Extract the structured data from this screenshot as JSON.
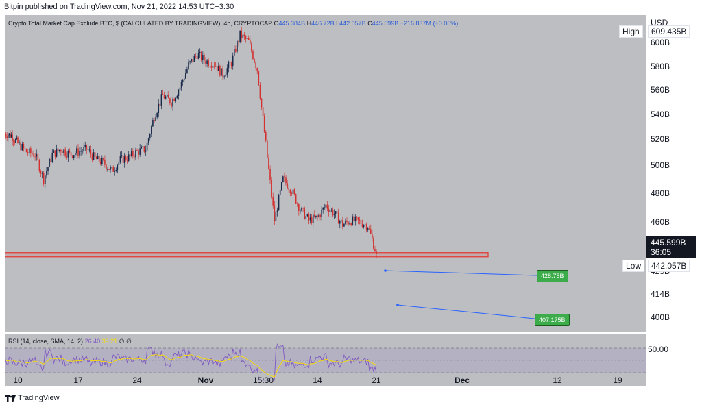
{
  "header": {
    "publish_line": "Bitpin published on TradingView.com, Nov 21, 2022 14:53 UTC+3:30"
  },
  "legend": {
    "symbol": "Crypto Total Market Cap Exclude BTC, $ (CALCULATED BY TRADINGVIEW), 4h, CRYPTOCAP",
    "open_label": "O",
    "open": "445.384B",
    "high_label": "H",
    "high": "446.72B",
    "low_label": "L",
    "low": "442.057B",
    "close_label": "C",
    "close": "445.599B",
    "change": "+216.837M (+0.05%)"
  },
  "rsi": {
    "label": "RSI (14, close, SMA, 14, 2)",
    "rsi_value": "26.40",
    "sma_value": "39.21",
    "empty1": "∅",
    "empty2": "∅",
    "axis_label": "50.00"
  },
  "price_axis": {
    "currency": "USD",
    "ticks": [
      "600B",
      "580B",
      "560B",
      "540B",
      "520B",
      "500B",
      "480B",
      "460B",
      "414B",
      "400B"
    ],
    "partial_tick": "425B"
  },
  "tags": {
    "high_label": "High",
    "high_value": "609.435B",
    "low_label": "Low",
    "low_value": "442.057B",
    "current_price": "445.599B",
    "countdown": "36:05"
  },
  "targets": {
    "target1": "428.75B",
    "target2": "407.175B"
  },
  "time_axis": {
    "ticks": [
      "10",
      "17",
      "24",
      "Nov",
      "15:30",
      "14",
      "21",
      "Dec",
      "12",
      "19"
    ],
    "bold": [
      "Nov",
      "Dec"
    ]
  },
  "footer": {
    "brand": "TradingView"
  },
  "colors": {
    "pane_bg": "#bcbec2",
    "up_candle": "#1a2a4a",
    "down_candle": "#d3302f",
    "zone": "#e5332a",
    "target_line": "#2962ff",
    "target_label": "#3cab4a",
    "rsi_line": "#7e57c2",
    "rsi_sma": "#f5d90a"
  },
  "chart_data": {
    "type": "candlestick",
    "title": "Crypto Total Market Cap Exclude BTC, $ (CALCULATED BY TRADINGVIEW), 4h, CRYPTOCAP",
    "timeframe": "4h",
    "yunit": "USD (billions)",
    "ylim": [
      390,
      612
    ],
    "x_dates_visible": [
      "Oct 10",
      "Oct 17",
      "Oct 24",
      "Nov 1",
      "Nov 8 15:30",
      "Nov 14",
      "Nov 21",
      "Dec 1",
      "Dec 12",
      "Dec 19"
    ],
    "price_path_approx": [
      {
        "date": "Oct 8",
        "value": 533
      },
      {
        "date": "Oct 9",
        "value": 532
      },
      {
        "date": "Oct 10",
        "value": 526
      },
      {
        "date": "Oct 11",
        "value": 520
      },
      {
        "date": "Oct 12",
        "value": 518
      },
      {
        "date": "Oct 13",
        "value": 500
      },
      {
        "date": "Oct 14",
        "value": 518
      },
      {
        "date": "Oct 15",
        "value": 522
      },
      {
        "date": "Oct 16",
        "value": 518
      },
      {
        "date": "Oct 17",
        "value": 520
      },
      {
        "date": "Oct 18",
        "value": 522
      },
      {
        "date": "Oct 19",
        "value": 515
      },
      {
        "date": "Oct 20",
        "value": 512
      },
      {
        "date": "Oct 21",
        "value": 506
      },
      {
        "date": "Oct 22",
        "value": 514
      },
      {
        "date": "Oct 23",
        "value": 516
      },
      {
        "date": "Oct 24",
        "value": 520
      },
      {
        "date": "Oct 25",
        "value": 522
      },
      {
        "date": "Oct 26",
        "value": 546
      },
      {
        "date": "Oct 27",
        "value": 561
      },
      {
        "date": "Oct 28",
        "value": 556
      },
      {
        "date": "Oct 29",
        "value": 567
      },
      {
        "date": "Oct 30",
        "value": 583
      },
      {
        "date": "Oct 31",
        "value": 591
      },
      {
        "date": "Nov 1",
        "value": 586
      },
      {
        "date": "Nov 2",
        "value": 584
      },
      {
        "date": "Nov 3",
        "value": 576
      },
      {
        "date": "Nov 4",
        "value": 585
      },
      {
        "date": "Nov 5",
        "value": 605
      },
      {
        "date": "Nov 6",
        "value": 600
      },
      {
        "date": "Nov 7",
        "value": 580
      },
      {
        "date": "Nov 8",
        "value": 525
      },
      {
        "date": "Nov 9",
        "value": 470
      },
      {
        "date": "Nov 10",
        "value": 500
      },
      {
        "date": "Nov 11",
        "value": 492
      },
      {
        "date": "Nov 12",
        "value": 478
      },
      {
        "date": "Nov 13",
        "value": 470
      },
      {
        "date": "Nov 14",
        "value": 472
      },
      {
        "date": "Nov 15",
        "value": 481
      },
      {
        "date": "Nov 16",
        "value": 475
      },
      {
        "date": "Nov 17",
        "value": 467
      },
      {
        "date": "Nov 18",
        "value": 470
      },
      {
        "date": "Nov 19",
        "value": 469
      },
      {
        "date": "Nov 20",
        "value": 466
      },
      {
        "date": "Nov 21",
        "value": 445.599
      }
    ],
    "high": 609.435,
    "low": 442.057,
    "current": 445.599,
    "support_zone": [
      443.5,
      446.5
    ],
    "projections": [
      {
        "label": "428.75B",
        "value": 428.75
      },
      {
        "label": "407.175B",
        "value": 407.175
      }
    ],
    "rsi": {
      "period": 14,
      "value": 26.4,
      "sma": 39.21,
      "level": 50.0
    }
  }
}
